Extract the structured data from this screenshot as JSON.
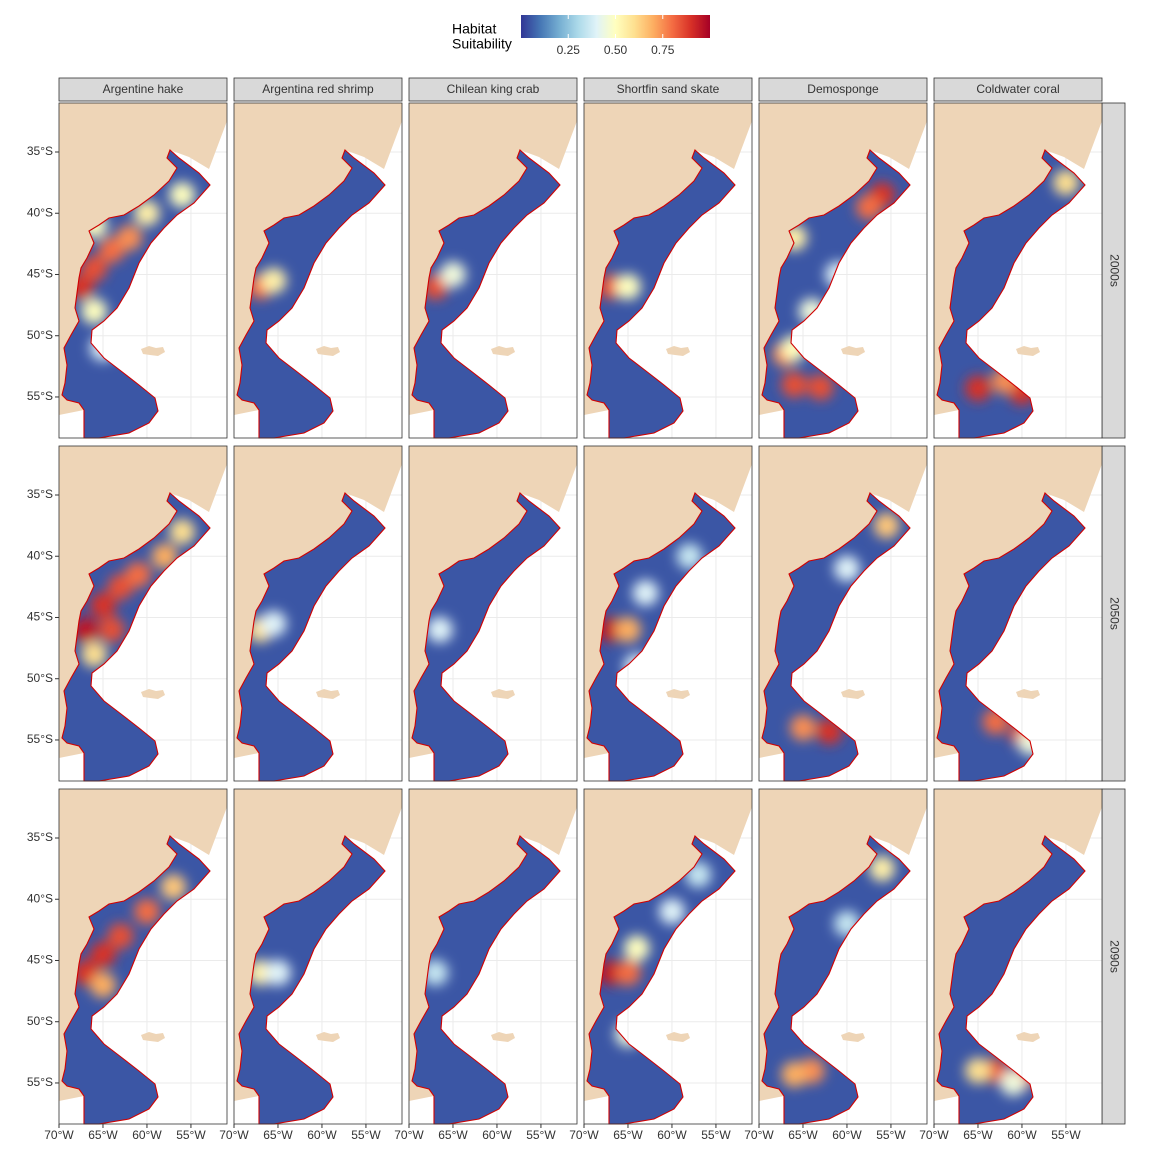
{
  "chart_data": {
    "type": "faceted-map",
    "legend": {
      "title": [
        "Habitat",
        "Suitability"
      ],
      "ticks": [
        0.25,
        {
          "value": 0.5,
          "label": "0.50"
        },
        0.75
      ],
      "scale_lim": [
        0,
        1
      ],
      "colors": [
        "#313695",
        "#4575b4",
        "#74add1",
        "#abd9e9",
        "#e0f3f8",
        "#ffffbf",
        "#fee090",
        "#fdae61",
        "#f46d43",
        "#d73027",
        "#a50026"
      ]
    },
    "columns": [
      "Argentine hake",
      "Argentina red shrimp",
      "Chilean king crab",
      "Shortfin sand skate",
      "Demosponge",
      "Coldwater coral"
    ],
    "rows": [
      "2000s",
      "2050s",
      "2090s"
    ],
    "xlim": [
      -70,
      -50.9
    ],
    "ylim": [
      -31,
      -58.35
    ],
    "xticks": [
      {
        "value": -70,
        "label": "70°W"
      },
      {
        "value": -65,
        "label": "65°W"
      },
      {
        "value": -60,
        "label": "60°W"
      },
      {
        "value": -55,
        "label": "55°W"
      }
    ],
    "yticks": [
      {
        "value": -35,
        "label": "35°S"
      },
      {
        "value": -40,
        "label": "40°S"
      },
      {
        "value": -45,
        "label": "45°S"
      },
      {
        "value": -50,
        "label": "50°S"
      },
      {
        "value": -55,
        "label": "55°S"
      }
    ],
    "base_value": 0.05,
    "panels": [
      [
        [
          [
            -67.5,
            -46,
            0.9
          ],
          [
            -66,
            -44.5,
            0.85
          ],
          [
            -64,
            -43,
            0.8
          ],
          [
            -62,
            -42,
            0.75
          ],
          [
            -66,
            -48,
            0.5
          ],
          [
            -60,
            -40,
            0.55
          ],
          [
            -56,
            -38.5,
            0.5
          ],
          [
            -65,
            -51,
            0.4
          ],
          [
            -66,
            -41,
            0.5
          ]
        ],
        [
          [
            -67,
            -46,
            0.8
          ],
          [
            -65.5,
            -45.5,
            0.55
          ]
        ],
        [
          [
            -67,
            -46,
            0.85
          ],
          [
            -65,
            -45,
            0.45
          ]
        ],
        [
          [
            -67,
            -46,
            0.85
          ],
          [
            -65,
            -46,
            0.5
          ]
        ],
        [
          [
            -56,
            -38.5,
            0.9
          ],
          [
            -57.5,
            -39.5,
            0.8
          ],
          [
            -67,
            -51.5,
            0.75
          ],
          [
            -66,
            -54,
            0.85
          ],
          [
            -63,
            -54.2,
            0.85
          ],
          [
            -61,
            -45,
            0.4
          ],
          [
            -64,
            -48,
            0.45
          ],
          [
            -66,
            -42,
            0.55
          ],
          [
            -66,
            -51,
            0.5
          ]
        ],
        [
          [
            -65,
            -54.3,
            0.9
          ],
          [
            -60,
            -54.6,
            0.9
          ],
          [
            -62,
            -53.7,
            0.75
          ],
          [
            -55,
            -37.5,
            0.6
          ]
        ]
      ],
      [
        [
          [
            -67,
            -46,
            0.95
          ],
          [
            -65,
            -44,
            0.9
          ],
          [
            -63,
            -42.5,
            0.85
          ],
          [
            -61,
            -41.5,
            0.8
          ],
          [
            -58,
            -40,
            0.7
          ],
          [
            -56,
            -38,
            0.6
          ],
          [
            -66,
            -48,
            0.6
          ],
          [
            -64,
            -46,
            0.85
          ]
        ],
        [
          [
            -67,
            -46,
            0.6
          ],
          [
            -65.5,
            -45.5,
            0.4
          ]
        ],
        [
          [
            -66.5,
            -46,
            0.4
          ]
        ],
        [
          [
            -67,
            -46,
            0.95
          ],
          [
            -65,
            -46,
            0.7
          ],
          [
            -64,
            -49,
            0.4
          ],
          [
            -63,
            -43,
            0.4
          ],
          [
            -58,
            -40,
            0.35
          ]
        ],
        [
          [
            -55.5,
            -37.5,
            0.65
          ],
          [
            -65,
            -54,
            0.75
          ],
          [
            -62,
            -54.3,
            0.9
          ],
          [
            -60,
            -41,
            0.4
          ]
        ],
        [
          [
            -63,
            -53.5,
            0.8
          ],
          [
            -60,
            -54.5,
            0.85
          ],
          [
            -59,
            -55.2,
            0.45
          ]
        ]
      ],
      [
        [
          [
            -67,
            -46,
            0.9
          ],
          [
            -65,
            -44.5,
            0.9
          ],
          [
            -63,
            -43,
            0.85
          ],
          [
            -60,
            -41,
            0.8
          ],
          [
            -57,
            -39,
            0.65
          ],
          [
            -65,
            -47,
            0.7
          ]
        ],
        [
          [
            -67,
            -46,
            0.55
          ],
          [
            -65,
            -46,
            0.4
          ]
        ],
        [
          [
            -67,
            -46,
            0.35
          ]
        ],
        [
          [
            -67,
            -46,
            0.95
          ],
          [
            -65,
            -46,
            0.8
          ],
          [
            -64,
            -44,
            0.5
          ],
          [
            -60,
            -41,
            0.4
          ],
          [
            -65,
            -51,
            0.45
          ],
          [
            -57,
            -38,
            0.35
          ]
        ],
        [
          [
            -56,
            -37.5,
            0.55
          ],
          [
            -64,
            -54,
            0.75
          ],
          [
            -66,
            -54.3,
            0.7
          ],
          [
            -60,
            -42,
            0.35
          ]
        ],
        [
          [
            -63,
            -54,
            0.85
          ],
          [
            -60,
            -54.5,
            0.85
          ],
          [
            -65,
            -54,
            0.6
          ],
          [
            -61,
            -55,
            0.45
          ]
        ]
      ]
    ]
  }
}
